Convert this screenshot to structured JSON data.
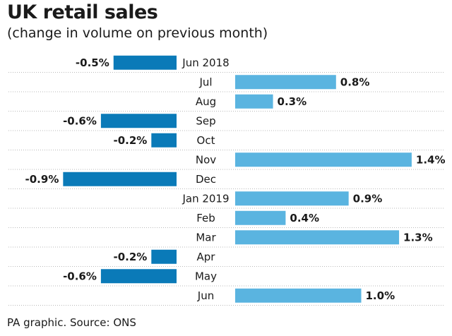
{
  "header": {
    "title": "UK retail sales",
    "subtitle": "(change in volume on previous month)"
  },
  "footer": {
    "source": "PA graphic. Source: ONS"
  },
  "colors": {
    "positive": "#5ab4e0",
    "negative": "#0a7ab8",
    "divider": "#b9b9b9"
  },
  "chart_data": {
    "type": "bar",
    "orientation": "horizontal",
    "title": "UK retail sales",
    "subtitle": "(change in volume on previous month)",
    "categories": [
      "Jun 2018",
      "Jul",
      "Aug",
      "Sep",
      "Oct",
      "Nov",
      "Dec",
      "Jan 2019",
      "Feb",
      "Mar",
      "Apr",
      "May",
      "Jun"
    ],
    "values": [
      -0.5,
      0.8,
      0.3,
      -0.6,
      -0.2,
      1.4,
      -0.9,
      0.9,
      0.4,
      1.3,
      -0.2,
      -0.6,
      1.0
    ],
    "value_labels": [
      "-0.5%",
      "0.8%",
      "0.3%",
      "-0.6%",
      "-0.2%",
      "1.4%",
      "-0.9%",
      "0.9%",
      "0.4%",
      "1.3%",
      "-0.2%",
      "-0.6%",
      "1.0%"
    ],
    "xlabel": "",
    "ylabel": "",
    "xlim": [
      -0.9,
      1.4
    ],
    "grid": false,
    "legend": "none"
  }
}
